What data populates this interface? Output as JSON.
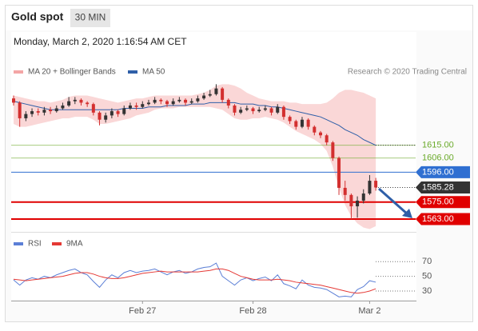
{
  "header": {
    "title": "Gold spot",
    "timeframe": "30 MIN",
    "date": "Monday, March 2, 2020 1:16:54 AM CET"
  },
  "chart_data": [
    {
      "type": "candlestick",
      "source": "Research © 2020 Trading Central",
      "ylim": [
        1554,
        1661
      ],
      "up_color": "#333333",
      "down_color": "#d32f2f",
      "open": [
        1648,
        1645,
        1634,
        1637,
        1639,
        1638,
        1640,
        1639,
        1641,
        1643,
        1646,
        1647,
        1645,
        1644,
        1638,
        1633,
        1636,
        1639,
        1637,
        1641,
        1643,
        1642,
        1644,
        1645,
        1647,
        1646,
        1644,
        1646,
        1647,
        1645,
        1646,
        1648,
        1650,
        1651,
        1655,
        1647,
        1643,
        1638,
        1640,
        1641,
        1639,
        1640,
        1641,
        1638,
        1642,
        1635,
        1632,
        1628,
        1633,
        1628,
        1624,
        1622,
        1617,
        1606,
        1585,
        1580,
        1572,
        1576,
        1581,
        1590
      ],
      "high": [
        1650,
        1646,
        1639,
        1641,
        1641,
        1642,
        1642,
        1643,
        1645,
        1649,
        1649,
        1648,
        1646,
        1645,
        1639,
        1638,
        1641,
        1640,
        1643,
        1645,
        1645,
        1646,
        1647,
        1649,
        1648,
        1647,
        1648,
        1649,
        1648,
        1648,
        1650,
        1652,
        1654,
        1658,
        1656,
        1648,
        1644,
        1642,
        1643,
        1642,
        1642,
        1643,
        1642,
        1644,
        1643,
        1636,
        1633,
        1635,
        1634,
        1629,
        1625,
        1623,
        1618,
        1607,
        1590,
        1581,
        1579,
        1584,
        1594,
        1592
      ],
      "low": [
        1643,
        1628,
        1632,
        1635,
        1636,
        1636,
        1637,
        1638,
        1640,
        1642,
        1644,
        1643,
        1642,
        1636,
        1629,
        1631,
        1634,
        1635,
        1636,
        1640,
        1640,
        1641,
        1643,
        1644,
        1644,
        1642,
        1643,
        1645,
        1643,
        1644,
        1645,
        1647,
        1649,
        1650,
        1645,
        1641,
        1636,
        1637,
        1639,
        1637,
        1638,
        1639,
        1636,
        1637,
        1633,
        1630,
        1626,
        1627,
        1626,
        1622,
        1620,
        1615,
        1604,
        1580,
        1576,
        1563,
        1564,
        1574,
        1580,
        1583
      ],
      "close": [
        1645,
        1634,
        1637,
        1639,
        1638,
        1640,
        1639,
        1641,
        1643,
        1646,
        1647,
        1645,
        1644,
        1638,
        1633,
        1636,
        1639,
        1637,
        1641,
        1643,
        1642,
        1644,
        1645,
        1647,
        1646,
        1644,
        1646,
        1647,
        1645,
        1646,
        1648,
        1650,
        1651,
        1655,
        1647,
        1643,
        1638,
        1640,
        1641,
        1639,
        1640,
        1641,
        1638,
        1642,
        1635,
        1632,
        1628,
        1633,
        1628,
        1624,
        1622,
        1617,
        1606,
        1585,
        1580,
        1572,
        1576,
        1581,
        1590,
        1585.28
      ],
      "band": {
        "name": "MA 20 + Bollinger Bands",
        "color": "#f4a6a6",
        "upper": [
          1650,
          1649,
          1648,
          1647,
          1646,
          1646,
          1645,
          1646,
          1647,
          1649,
          1650,
          1650,
          1650,
          1649,
          1648,
          1647,
          1646,
          1645,
          1646,
          1647,
          1648,
          1648,
          1649,
          1650,
          1650,
          1650,
          1650,
          1650,
          1650,
          1650,
          1651,
          1652,
          1654,
          1657,
          1658,
          1658,
          1657,
          1655,
          1652,
          1650,
          1648,
          1647,
          1646,
          1646,
          1646,
          1645,
          1645,
          1644,
          1644,
          1644,
          1644,
          1645,
          1648,
          1652,
          1654,
          1654,
          1653,
          1652,
          1650,
          1648
        ],
        "lower": [
          1630,
          1628,
          1628,
          1629,
          1630,
          1631,
          1632,
          1633,
          1634,
          1634,
          1635,
          1635,
          1635,
          1633,
          1630,
          1630,
          1631,
          1632,
          1633,
          1634,
          1636,
          1637,
          1638,
          1640,
          1641,
          1641,
          1641,
          1642,
          1642,
          1642,
          1642,
          1642,
          1642,
          1641,
          1640,
          1637,
          1634,
          1633,
          1633,
          1634,
          1634,
          1635,
          1634,
          1633,
          1631,
          1628,
          1625,
          1623,
          1621,
          1619,
          1616,
          1611,
          1600,
          1585,
          1573,
          1565,
          1560,
          1557,
          1556,
          1558
        ]
      },
      "series": [
        {
          "name": "MA 50",
          "color": "#2f5fa8",
          "values": [
            1646,
            1645,
            1644,
            1643,
            1642,
            1641,
            1640,
            1640,
            1640,
            1640,
            1640,
            1640,
            1640,
            1640,
            1640,
            1640,
            1640,
            1640,
            1641,
            1641,
            1641,
            1641,
            1642,
            1642,
            1642,
            1643,
            1643,
            1643,
            1643,
            1644,
            1644,
            1644,
            1645,
            1645,
            1645,
            1645,
            1645,
            1644,
            1644,
            1644,
            1643,
            1643,
            1642,
            1642,
            1641,
            1640,
            1639,
            1638,
            1637,
            1636,
            1635,
            1633,
            1631,
            1629,
            1626,
            1624,
            1622,
            1619,
            1617,
            1615
          ]
        }
      ],
      "levels": [
        {
          "value": 1615,
          "label": "1615.00",
          "color": "#6aaa2a",
          "boxed": false,
          "dotted": false
        },
        {
          "value": 1606,
          "label": "1606.00",
          "color": "#6aaa2a",
          "boxed": false,
          "dotted": false
        },
        {
          "value": 1596,
          "label": "1596.00",
          "color": "#2f6fd1",
          "boxed": true,
          "dotted": false
        },
        {
          "value": 1585.28,
          "label": "1585.28",
          "color": "#333333",
          "boxed": true,
          "dotted": true
        },
        {
          "value": 1575,
          "label": "1575.00",
          "color": "#e00000",
          "boxed": true,
          "dotted": false
        },
        {
          "value": 1563,
          "label": "1563.00",
          "color": "#e00000",
          "boxed": true,
          "dotted": false
        }
      ]
    },
    {
      "type": "line",
      "ylim": [
        18,
        80
      ],
      "yticks": [
        30,
        50,
        70
      ],
      "categories": [
        null,
        null,
        null,
        null,
        null,
        null,
        null,
        null,
        null,
        null,
        null,
        null,
        null,
        null,
        null,
        null,
        null,
        null,
        null,
        null,
        null,
        "Feb 27",
        null,
        null,
        null,
        null,
        null,
        null,
        null,
        null,
        null,
        null,
        null,
        null,
        null,
        null,
        null,
        null,
        null,
        "Feb 28",
        null,
        null,
        null,
        null,
        null,
        null,
        null,
        null,
        null,
        null,
        null,
        null,
        null,
        null,
        null,
        null,
        null,
        null,
        "Mar 2",
        null
      ],
      "series": [
        {
          "name": "RSI",
          "color": "#5b7fd6",
          "values": [
            45,
            38,
            45,
            48,
            46,
            50,
            48,
            52,
            55,
            58,
            60,
            55,
            52,
            43,
            35,
            45,
            52,
            48,
            55,
            58,
            55,
            57,
            58,
            60,
            56,
            52,
            56,
            58,
            54,
            56,
            60,
            62,
            63,
            68,
            50,
            44,
            38,
            45,
            48,
            44,
            47,
            49,
            44,
            52,
            40,
            37,
            33,
            45,
            38,
            35,
            34,
            32,
            27,
            22,
            23,
            22,
            32,
            36,
            44,
            42
          ]
        },
        {
          "name": "9MA",
          "color": "#e53935",
          "values": [
            46,
            45,
            44,
            45,
            46,
            47,
            48,
            49,
            50,
            52,
            54,
            55,
            55,
            53,
            50,
            48,
            47,
            47,
            48,
            50,
            52,
            54,
            55,
            56,
            57,
            56,
            56,
            56,
            56,
            56,
            56,
            57,
            58,
            60,
            60,
            58,
            54,
            50,
            48,
            46,
            45,
            45,
            45,
            46,
            45,
            44,
            42,
            41,
            40,
            39,
            38,
            36,
            34,
            32,
            30,
            28,
            27,
            28,
            30,
            33
          ]
        }
      ]
    }
  ]
}
